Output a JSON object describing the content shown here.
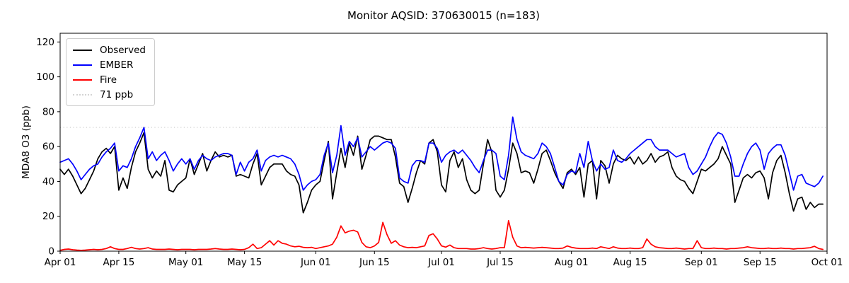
{
  "chart_data": {
    "type": "line",
    "title": "Monitor AQSID: 370630015 (n=183)",
    "ylabel": "MDA8 O3 (ppb)",
    "xlabel": "",
    "ylim": [
      0,
      125
    ],
    "x_span_days": 183,
    "grid": false,
    "legend_position": "upper left",
    "y_ticks": [
      0,
      20,
      40,
      60,
      80,
      100,
      120
    ],
    "x_ticks": [
      {
        "label": "Apr 01",
        "day": 0
      },
      {
        "label": "Apr 15",
        "day": 14
      },
      {
        "label": "May 01",
        "day": 30
      },
      {
        "label": "May 15",
        "day": 44
      },
      {
        "label": "Jun 01",
        "day": 61
      },
      {
        "label": "Jun 15",
        "day": 75
      },
      {
        "label": "Jul 01",
        "day": 91
      },
      {
        "label": "Jul 15",
        "day": 105
      },
      {
        "label": "Aug 01",
        "day": 122
      },
      {
        "label": "Aug 15",
        "day": 136
      },
      {
        "label": "Sep 01",
        "day": 153
      },
      {
        "label": "Sep 15",
        "day": 167
      },
      {
        "label": "Oct 01",
        "day": 183
      }
    ],
    "ref_line": {
      "label": "71 ppb",
      "value": 71,
      "color": "#d3d3d3"
    },
    "series": [
      {
        "name": "Observed",
        "color": "#000000",
        "values": [
          47,
          44,
          47,
          43,
          38,
          33,
          36,
          41,
          46,
          53,
          57,
          59,
          56,
          60,
          35,
          42,
          36,
          48,
          57,
          62,
          68,
          47,
          42,
          46,
          43,
          52,
          35,
          34,
          38,
          40,
          42,
          53,
          44,
          50,
          56,
          46,
          52,
          57,
          54,
          55,
          54,
          55,
          43,
          44,
          43,
          42,
          50,
          56,
          38,
          43,
          48,
          50,
          50,
          50,
          46,
          44,
          43,
          38,
          22,
          28,
          35,
          38,
          40,
          52,
          63,
          30,
          45,
          59,
          48,
          62,
          55,
          66,
          47,
          55,
          64,
          66,
          66,
          65,
          64,
          64,
          54,
          39,
          37,
          28,
          36,
          45,
          52,
          50,
          62,
          64,
          57,
          38,
          34,
          52,
          57,
          48,
          53,
          41,
          35,
          33,
          35,
          50,
          64,
          57,
          35,
          31,
          35,
          47,
          62,
          56,
          45,
          46,
          45,
          39,
          47,
          56,
          58,
          52,
          45,
          40,
          36,
          45,
          47,
          44,
          48,
          31,
          50,
          52,
          30,
          52,
          49,
          39,
          50,
          55,
          53,
          52,
          54,
          50,
          54,
          50,
          52,
          56,
          51,
          54,
          55,
          57,
          48,
          43,
          41,
          40,
          36,
          33,
          40,
          47,
          46,
          48,
          50,
          53,
          60,
          55,
          50,
          28,
          35,
          42,
          44,
          42,
          45,
          46,
          42,
          30,
          45,
          52,
          55,
          45,
          33,
          23,
          30,
          31,
          24,
          28,
          25,
          27,
          27
        ]
      },
      {
        "name": "EMBER",
        "color": "#0000ff",
        "values": [
          51,
          52,
          53,
          50,
          46,
          41,
          44,
          47,
          49,
          50,
          54,
          57,
          59,
          62,
          46,
          49,
          48,
          53,
          60,
          65,
          71,
          53,
          57,
          52,
          55,
          57,
          52,
          46,
          50,
          53,
          50,
          53,
          47,
          52,
          55,
          53,
          52,
          54,
          55,
          56,
          56,
          55,
          44,
          51,
          46,
          51,
          53,
          58,
          46,
          52,
          54,
          55,
          54,
          55,
          54,
          53,
          50,
          44,
          35,
          38,
          40,
          41,
          44,
          55,
          62,
          45,
          55,
          72,
          55,
          63,
          60,
          65,
          54,
          57,
          60,
          58,
          60,
          62,
          63,
          62,
          59,
          42,
          40,
          39,
          49,
          52,
          52,
          51,
          62,
          62,
          59,
          51,
          55,
          57,
          58,
          56,
          58,
          55,
          52,
          48,
          45,
          52,
          58,
          58,
          56,
          43,
          41,
          55,
          77,
          64,
          57,
          55,
          54,
          53,
          56,
          62,
          60,
          56,
          48,
          40,
          38,
          44,
          46,
          45,
          56,
          48,
          63,
          52,
          46,
          50,
          47,
          48,
          58,
          52,
          51,
          53,
          56,
          58,
          60,
          62,
          64,
          64,
          60,
          58,
          58,
          58,
          56,
          54,
          55,
          56,
          48,
          44,
          46,
          50,
          54,
          60,
          65,
          68,
          67,
          62,
          54,
          43,
          43,
          50,
          56,
          60,
          62,
          58,
          47,
          56,
          59,
          61,
          61,
          55,
          45,
          35,
          43,
          44,
          39,
          38,
          37,
          39,
          43
        ]
      },
      {
        "name": "Fire",
        "color": "#ff0000",
        "values": [
          0.5,
          1,
          1.2,
          0.8,
          0.6,
          0.5,
          0.6,
          0.8,
          1,
          0.8,
          1,
          1.5,
          2.5,
          1.5,
          1,
          1,
          1.5,
          2.2,
          1.5,
          1.2,
          1.5,
          2,
          1.2,
          1,
          1,
          1,
          1.2,
          1,
          0.8,
          1,
          1,
          1,
          0.8,
          1,
          1,
          1,
          1.2,
          1.5,
          1.2,
          1,
          1,
          1.2,
          1,
          0.8,
          1,
          2,
          4,
          1.5,
          2,
          4,
          6,
          3.5,
          6,
          4.5,
          4,
          3,
          2.5,
          2.8,
          2.2,
          2,
          2.2,
          1.5,
          2,
          2.5,
          3,
          4,
          8,
          14.5,
          10.5,
          11.5,
          12,
          11,
          5,
          2.5,
          2,
          3,
          5,
          16.5,
          9.5,
          4.5,
          6,
          3.5,
          2.5,
          2,
          2.2,
          2,
          2.5,
          3,
          9,
          10,
          7,
          3,
          2.3,
          3.5,
          2,
          1.5,
          1.5,
          1.5,
          1.2,
          1.2,
          1.5,
          2,
          1.5,
          1.2,
          1.5,
          2,
          2,
          17.5,
          8,
          3,
          2,
          2.2,
          2,
          1.8,
          2,
          2.2,
          2,
          1.8,
          1.5,
          1.5,
          1.8,
          3,
          2.2,
          1.8,
          1.5,
          1.5,
          1.5,
          1.8,
          1.5,
          2.5,
          2,
          1.5,
          2.5,
          1.8,
          1.5,
          1.5,
          1.8,
          1.5,
          1.5,
          2,
          7,
          4,
          2.5,
          2,
          1.8,
          1.5,
          1.5,
          1.8,
          1.5,
          1.2,
          1.5,
          1.5,
          6,
          2,
          1.5,
          1.5,
          1.8,
          1.5,
          1.5,
          1.2,
          1.5,
          1.5,
          1.8,
          2,
          2.5,
          2,
          1.8,
          1.5,
          1.5,
          1.8,
          1.5,
          1.5,
          1.8,
          1.5,
          1.5,
          1.2,
          1.5,
          1.5,
          1.8,
          2,
          2.8,
          1.5,
          1
        ]
      }
    ],
    "colors": {
      "axis": "#000000",
      "text": "#000000",
      "background": "#ffffff",
      "legend_border": "#cccccc"
    }
  }
}
